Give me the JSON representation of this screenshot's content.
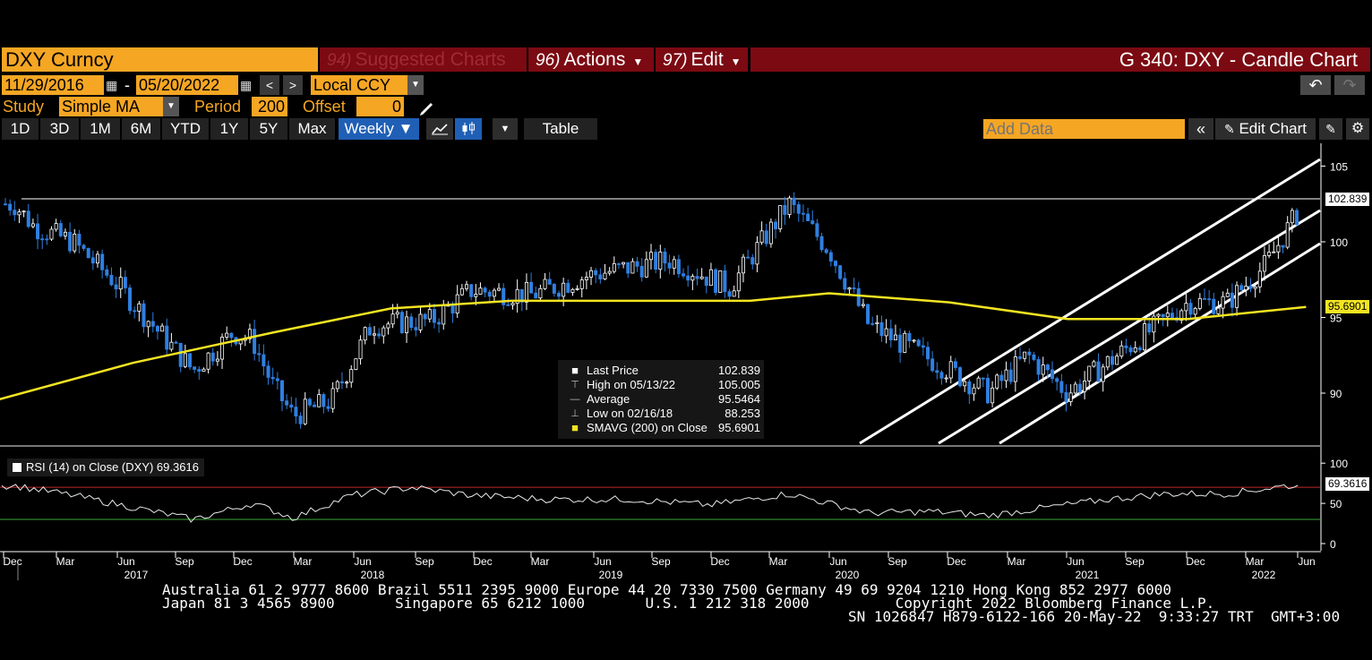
{
  "header": {
    "ticker": "DXY Curncy",
    "menus": [
      {
        "num": "94)",
        "label": "Suggested Charts",
        "dim": true
      },
      {
        "num": "96)",
        "label": "Actions",
        "dim": false
      },
      {
        "num": "97)",
        "label": "Edit",
        "dim": false
      }
    ],
    "title": "G 340: DXY - Candle Chart"
  },
  "range": {
    "start": "11/29/2016",
    "end": "05/20/2022",
    "currency": "Local CCY",
    "undo": "↶",
    "redo": "↷"
  },
  "study": {
    "label": "Study",
    "value": "Simple MA",
    "period_label": "Period",
    "period": "200",
    "offset_label": "Offset",
    "offset": "0"
  },
  "toolbar": {
    "periods": [
      "1D",
      "3D",
      "1M",
      "6M",
      "YTD",
      "1Y",
      "5Y",
      "Max"
    ],
    "frequency": "Weekly ▼",
    "table": "Table",
    "add_data_placeholder": "Add Data",
    "edit_chart": "Edit Chart"
  },
  "legend": {
    "rows": [
      {
        "marker": "■",
        "label": "Last Price",
        "value": "102.839"
      },
      {
        "marker": "⊤",
        "label": "High on 05/13/22",
        "value": "105.005"
      },
      {
        "marker": "—",
        "label": "Average",
        "value": "95.5464"
      },
      {
        "marker": "⊥",
        "label": "Low on 02/16/18",
        "value": "88.253"
      },
      {
        "marker": "■",
        "label": "SMAVG (200)  on Close",
        "value": "95.6901"
      }
    ]
  },
  "rsi": {
    "label": "RSI (14)  on Close (DXY) 69.3616",
    "value_tag": "69.3616",
    "ticks": [
      "100",
      "50",
      "0"
    ]
  },
  "axis": {
    "price_ticks": [
      "105",
      "100",
      "95",
      "90"
    ],
    "last_tag": "102.839",
    "sma_tag": "95.6901",
    "months": [
      "Dec",
      "Mar",
      "Jun",
      "Sep",
      "Dec",
      "Mar",
      "Jun",
      "Sep",
      "Dec",
      "Mar",
      "Jun",
      "Sep",
      "Dec",
      "Mar",
      "Jun",
      "Sep",
      "Dec",
      "Mar",
      "Jun",
      "Sep",
      "Dec",
      "Mar",
      "Jun"
    ],
    "years": [
      "2017",
      "2018",
      "2019",
      "2020",
      "2021",
      "2022"
    ]
  },
  "footer": {
    "line1": "Australia 61 2 9777 8600 Brazil 5511 2395 9000 Europe 44 20 7330 7500 Germany 49 69 9204 1210 Hong Kong 852 2977 6000",
    "line2": "Japan 81 3 4565 8900       Singapore 65 6212 1000       U.S. 1 212 318 2000          Copyright 2022 Bloomberg Finance L.P.",
    "line3": "SN 1026847 H879-6122-166 20-May-22  9:33:27 TRT  GMT+3:00"
  },
  "colors": {
    "orange": "#f5a623",
    "header_red": "#7b0a12",
    "sma_yellow": "#f2e422",
    "candle_up": "#ffffff",
    "candle_down": "#2f7fe0",
    "rsi_upper": "#c0282b",
    "rsi_lower": "#3aa83a"
  },
  "chart_data": {
    "type": "candlestick",
    "title": "G 340: DXY - Candle Chart",
    "x_range": [
      "2016-11-29",
      "2022-05-20"
    ],
    "ylim": [
      86,
      106
    ],
    "grid": false,
    "series": [
      {
        "name": "Last Price",
        "points": [
          {
            "x": "2016-12",
            "y": 102.5
          },
          {
            "x": "2017-01",
            "y": 101.0
          },
          {
            "x": "2017-03",
            "y": 100.0
          },
          {
            "x": "2017-05",
            "y": 97.5
          },
          {
            "x": "2017-08",
            "y": 93.0
          },
          {
            "x": "2017-09",
            "y": 91.5
          },
          {
            "x": "2017-11",
            "y": 94.0
          },
          {
            "x": "2017-12",
            "y": 93.5
          },
          {
            "x": "2018-01",
            "y": 90.5
          },
          {
            "x": "2018-02",
            "y": 88.5
          },
          {
            "x": "2018-04",
            "y": 89.5
          },
          {
            "x": "2018-06",
            "y": 94.5
          },
          {
            "x": "2018-09",
            "y": 94.8
          },
          {
            "x": "2018-11",
            "y": 96.8
          },
          {
            "x": "2019-02",
            "y": 96.5
          },
          {
            "x": "2019-05",
            "y": 97.8
          },
          {
            "x": "2019-09",
            "y": 98.8
          },
          {
            "x": "2019-12",
            "y": 97.0
          },
          {
            "x": "2020-03",
            "y": 102.5
          },
          {
            "x": "2020-05",
            "y": 99.5
          },
          {
            "x": "2020-07",
            "y": 94.5
          },
          {
            "x": "2020-09",
            "y": 93.0
          },
          {
            "x": "2021-01",
            "y": 90.0
          },
          {
            "x": "2021-03",
            "y": 92.5
          },
          {
            "x": "2021-05",
            "y": 90.0
          },
          {
            "x": "2021-08",
            "y": 93.0
          },
          {
            "x": "2021-11",
            "y": 96.0
          },
          {
            "x": "2022-01",
            "y": 96.0
          },
          {
            "x": "2022-03",
            "y": 98.5
          },
          {
            "x": "2022-05",
            "y": 102.839
          }
        ]
      },
      {
        "name": "SMAVG (200)  on Close",
        "points": [
          {
            "x": "2016-11",
            "y": 89.5
          },
          {
            "x": "2017-06",
            "y": 92.0
          },
          {
            "x": "2018-01",
            "y": 94.0
          },
          {
            "x": "2018-07",
            "y": 95.6
          },
          {
            "x": "2019-01",
            "y": 96.1
          },
          {
            "x": "2019-07",
            "y": 96.1
          },
          {
            "x": "2020-01",
            "y": 96.1
          },
          {
            "x": "2020-05",
            "y": 96.6
          },
          {
            "x": "2020-11",
            "y": 96.0
          },
          {
            "x": "2021-05",
            "y": 94.9
          },
          {
            "x": "2021-11",
            "y": 94.9
          },
          {
            "x": "2022-05",
            "y": 95.6901
          }
        ]
      }
    ],
    "stats": {
      "last": 102.839,
      "high": 105.005,
      "average": 95.5464,
      "low": 88.253,
      "sma200": 95.6901
    },
    "rsi": {
      "name": "RSI (14)",
      "last": 69.3616,
      "ylim": [
        0,
        100
      ],
      "upper_band": 70,
      "lower_band": 30,
      "points": [
        {
          "x": "2016-12",
          "y": 72
        },
        {
          "x": "2017-03",
          "y": 60
        },
        {
          "x": "2017-06",
          "y": 45
        },
        {
          "x": "2017-09",
          "y": 30
        },
        {
          "x": "2017-12",
          "y": 50
        },
        {
          "x": "2018-02",
          "y": 32
        },
        {
          "x": "2018-05",
          "y": 60
        },
        {
          "x": "2018-08",
          "y": 70
        },
        {
          "x": "2018-11",
          "y": 60
        },
        {
          "x": "2019-03",
          "y": 55
        },
        {
          "x": "2019-07",
          "y": 55
        },
        {
          "x": "2019-11",
          "y": 48
        },
        {
          "x": "2020-03",
          "y": 62
        },
        {
          "x": "2020-07",
          "y": 38
        },
        {
          "x": "2020-10",
          "y": 40
        },
        {
          "x": "2021-01",
          "y": 35
        },
        {
          "x": "2021-04",
          "y": 45
        },
        {
          "x": "2021-07",
          "y": 55
        },
        {
          "x": "2021-10",
          "y": 62
        },
        {
          "x": "2022-01",
          "y": 62
        },
        {
          "x": "2022-04",
          "y": 72
        },
        {
          "x": "2022-05",
          "y": 69.3616
        }
      ]
    }
  }
}
